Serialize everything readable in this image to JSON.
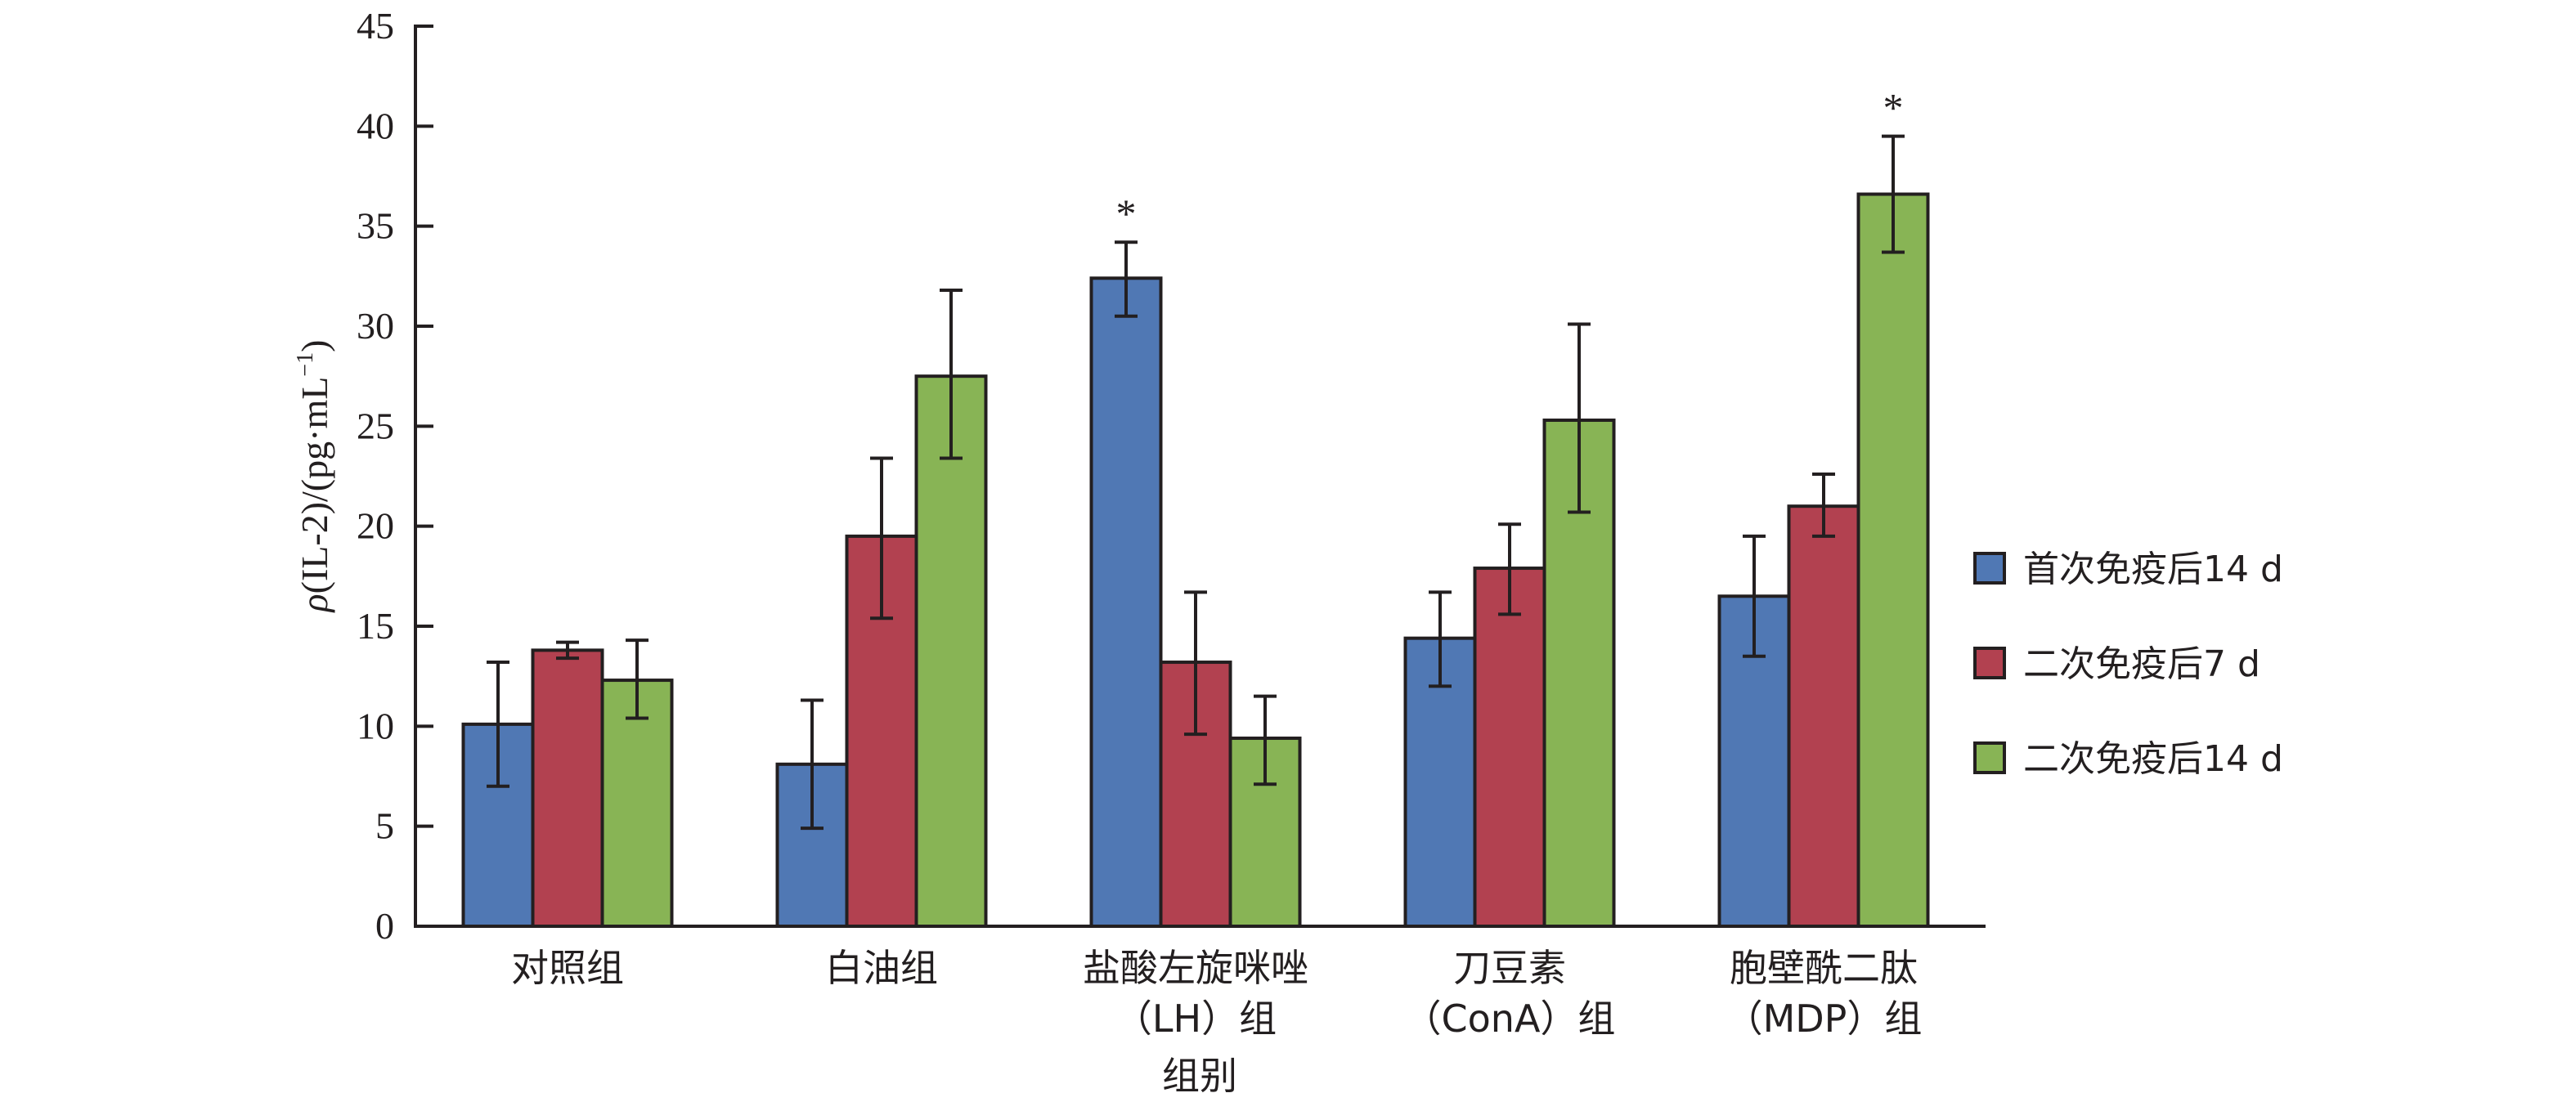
{
  "chart_data": {
    "type": "bar",
    "title": "",
    "xlabel": "组别",
    "ylabel": "ρ(IL-2)/(pg·mL⁻¹)",
    "ylabel_parts": {
      "rho": "ρ",
      "rest": "(IL-2)/(pg·mL",
      "sup": "−1",
      "close": ")"
    },
    "ylim": [
      0,
      45
    ],
    "yticks": [
      0,
      5,
      10,
      15,
      20,
      25,
      30,
      35,
      40,
      45
    ],
    "grid": false,
    "legend_position": "right",
    "categories": [
      {
        "lines": [
          "对照组"
        ]
      },
      {
        "lines": [
          "白油组"
        ]
      },
      {
        "lines": [
          "盐酸左旋咪唑",
          "（LH）组"
        ]
      },
      {
        "lines": [
          "刀豆素",
          "（ConA）组"
        ]
      },
      {
        "lines": [
          "胞壁酰二肽",
          "（MDP）组"
        ]
      }
    ],
    "series": [
      {
        "name": "首次免疫后14 d",
        "color": "#5078b4",
        "values": [
          10.1,
          8.1,
          32.4,
          14.4,
          16.5
        ],
        "error_upper": [
          13.2,
          11.3,
          34.2,
          16.7,
          19.5
        ],
        "error_lower": [
          7.0,
          4.9,
          30.5,
          12.0,
          13.5
        ],
        "significance": [
          "",
          "",
          "*",
          "",
          ""
        ]
      },
      {
        "name": "二次免疫后7 d",
        "color": "#b24150",
        "values": [
          13.8,
          19.5,
          13.2,
          17.9,
          21.0
        ],
        "error_upper": [
          14.2,
          23.4,
          16.7,
          20.1,
          22.6
        ],
        "error_lower": [
          13.4,
          15.4,
          9.6,
          15.6,
          19.5
        ],
        "significance": [
          "",
          "",
          "",
          "",
          ""
        ]
      },
      {
        "name": "二次免疫后14 d",
        "color": "#88b455",
        "values": [
          12.3,
          27.5,
          9.4,
          25.3,
          36.6
        ],
        "error_upper": [
          14.3,
          31.8,
          11.5,
          30.1,
          39.5
        ],
        "error_lower": [
          10.4,
          23.4,
          7.1,
          20.7,
          33.7
        ],
        "significance": [
          "",
          "",
          "",
          "",
          "*"
        ]
      }
    ]
  }
}
